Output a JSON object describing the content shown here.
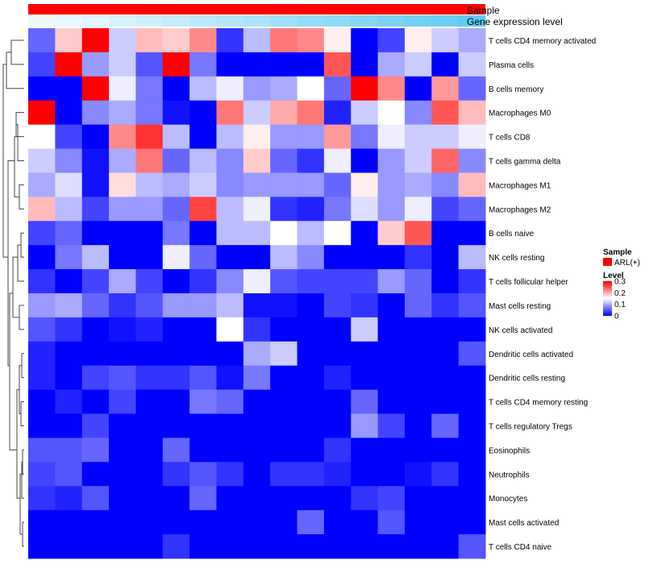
{
  "chart_data": {
    "type": "heatmap",
    "annotation_tracks": [
      "Sample",
      "Gene expression level"
    ],
    "sample_annotation": "ARL(+)",
    "rows": [
      "T cells CD4 memory activated",
      "Plasma cells",
      "B cells memory",
      "Macrophages M0",
      "T cells CD8",
      "T cells gamma delta",
      "Macrophages M1",
      "Macrophages M2",
      "B cells naive",
      "NK cells resting",
      "T cells follicular helper",
      "Mast cells resting",
      "NK cells activated",
      "Dendritic cells activated",
      "Dendritic cells resting",
      "T cells CD4 memory resting",
      "T cells regulatory  Tregs",
      "Eosinophils",
      "Neutrophils",
      "Monocytes",
      "Mast cells activated",
      "T cells CD4 naive"
    ],
    "values": [
      [
        0.06,
        0.18,
        0.3,
        0.12,
        0.19,
        0.18,
        0.22,
        0.03,
        0.11,
        0.23,
        0.22,
        0.16,
        0.0,
        0.04,
        0.16,
        0.12,
        0.1
      ],
      [
        0.04,
        0.3,
        0.09,
        0.12,
        0.05,
        0.3,
        0.07,
        0.0,
        0.0,
        0.0,
        0.0,
        0.25,
        0.0,
        0.1,
        0.12,
        0.0,
        0.12
      ],
      [
        0.0,
        0.0,
        0.3,
        0.14,
        0.07,
        0.0,
        0.11,
        0.14,
        0.09,
        0.1,
        0.15,
        0.06,
        0.3,
        0.22,
        0.0,
        0.21,
        0.06
      ],
      [
        0.3,
        0.0,
        0.08,
        0.1,
        0.07,
        0.01,
        0.0,
        0.23,
        0.12,
        0.2,
        0.23,
        0.02,
        0.12,
        0.15,
        0.08,
        0.25,
        0.19
      ],
      [
        0.15,
        0.04,
        0.0,
        0.22,
        0.27,
        0.11,
        0.0,
        0.11,
        0.16,
        0.09,
        0.09,
        0.21,
        0.07,
        0.14,
        0.12,
        0.12,
        0.14
      ],
      [
        0.12,
        0.08,
        0.01,
        0.1,
        0.23,
        0.06,
        0.11,
        0.08,
        0.18,
        0.06,
        0.03,
        0.14,
        0.0,
        0.09,
        0.12,
        0.24,
        0.08
      ],
      [
        0.1,
        0.13,
        0.01,
        0.17,
        0.11,
        0.1,
        0.12,
        0.08,
        0.09,
        0.09,
        0.09,
        0.06,
        0.16,
        0.09,
        0.1,
        0.08,
        0.19
      ],
      [
        0.19,
        0.11,
        0.04,
        0.09,
        0.09,
        0.06,
        0.26,
        0.11,
        0.14,
        0.03,
        0.02,
        0.07,
        0.13,
        0.09,
        0.14,
        0.04,
        0.06
      ],
      [
        0.04,
        0.06,
        0.0,
        0.0,
        0.0,
        0.07,
        0.0,
        0.11,
        0.11,
        0.15,
        0.11,
        0.15,
        0.0,
        0.18,
        0.25,
        0.0,
        0.0
      ],
      [
        0.0,
        0.07,
        0.11,
        0.0,
        0.0,
        0.14,
        0.06,
        0.0,
        0.0,
        0.11,
        0.08,
        0.0,
        0.0,
        0.0,
        0.03,
        0.0,
        0.11
      ],
      [
        0.03,
        0.0,
        0.04,
        0.1,
        0.04,
        0.0,
        0.03,
        0.08,
        0.14,
        0.05,
        0.04,
        0.04,
        0.04,
        0.09,
        0.06,
        0.0,
        0.03
      ],
      [
        0.09,
        0.1,
        0.06,
        0.03,
        0.05,
        0.09,
        0.09,
        0.11,
        0.01,
        0.01,
        0.0,
        0.04,
        0.03,
        0.0,
        0.06,
        0.03,
        0.05
      ],
      [
        0.05,
        0.03,
        0.0,
        0.01,
        0.02,
        0.0,
        0.0,
        0.15,
        0.03,
        0.0,
        0.0,
        0.0,
        0.12,
        0.0,
        0.0,
        0.0,
        0.0
      ],
      [
        0.02,
        0.0,
        0.0,
        0.0,
        0.0,
        0.0,
        0.0,
        0.0,
        0.1,
        0.12,
        0.0,
        0.0,
        0.0,
        0.0,
        0.0,
        0.0,
        0.05
      ],
      [
        0.02,
        0.0,
        0.04,
        0.05,
        0.03,
        0.03,
        0.05,
        0.01,
        0.07,
        0.0,
        0.0,
        0.02,
        0.0,
        0.0,
        0.0,
        0.0,
        0.0
      ],
      [
        0.0,
        0.02,
        0.0,
        0.04,
        0.0,
        0.0,
        0.07,
        0.06,
        0.0,
        0.0,
        0.0,
        0.0,
        0.06,
        0.0,
        0.0,
        0.0,
        0.0
      ],
      [
        0.0,
        0.0,
        0.04,
        0.0,
        0.0,
        0.0,
        0.0,
        0.0,
        0.0,
        0.0,
        0.0,
        0.0,
        0.09,
        0.04,
        0.0,
        0.06,
        0.0
      ],
      [
        0.05,
        0.05,
        0.06,
        0.0,
        0.0,
        0.06,
        0.0,
        0.0,
        0.0,
        0.0,
        0.0,
        0.03,
        0.0,
        0.0,
        0.0,
        0.0,
        0.0
      ],
      [
        0.04,
        0.05,
        0.0,
        0.0,
        0.0,
        0.03,
        0.05,
        0.03,
        0.0,
        0.03,
        0.03,
        0.02,
        0.0,
        0.0,
        0.01,
        0.03,
        0.0
      ],
      [
        0.03,
        0.02,
        0.05,
        0.0,
        0.0,
        0.0,
        0.06,
        0.0,
        0.0,
        0.0,
        0.0,
        0.0,
        0.03,
        0.04,
        0.0,
        0.0,
        0.0
      ],
      [
        0.0,
        0.0,
        0.0,
        0.0,
        0.0,
        0.0,
        0.0,
        0.0,
        0.0,
        0.0,
        0.06,
        0.0,
        0.0,
        0.05,
        0.0,
        0.0,
        0.0
      ],
      [
        0.0,
        0.0,
        0.0,
        0.0,
        0.0,
        0.03,
        0.0,
        0.0,
        0.0,
        0.0,
        0.0,
        0.0,
        0.0,
        0.0,
        0.0,
        0.0,
        0.05
      ]
    ],
    "gene_expression_levels": [
      0.02,
      0.06,
      0.12,
      0.18,
      0.24,
      0.3,
      0.36,
      0.42,
      0.48,
      0.54,
      0.6,
      0.66,
      0.72,
      0.78,
      0.84,
      0.9,
      0.96
    ],
    "color_scale": {
      "min": 0,
      "mid": 0.15,
      "max": 0.3,
      "low_color": "#0000ff",
      "mid_color": "#ffffff",
      "high_color": "#ff0000"
    },
    "legend": {
      "sample_title": "Sample",
      "sample_entry": "ARL(+)",
      "sample_color": "#ff0000",
      "level_title": "Level",
      "level_ticks": [
        "0.3",
        "0.2",
        "0.1",
        "0"
      ],
      "level_tick_values": [
        0.3,
        0.2,
        0.1,
        0
      ]
    },
    "row_dendrogram": true
  },
  "colors": {
    "sample_bar": "#ff0000",
    "gene_expr_low": "#f2fbff",
    "gene_expr_high": "#5bc8f0"
  }
}
